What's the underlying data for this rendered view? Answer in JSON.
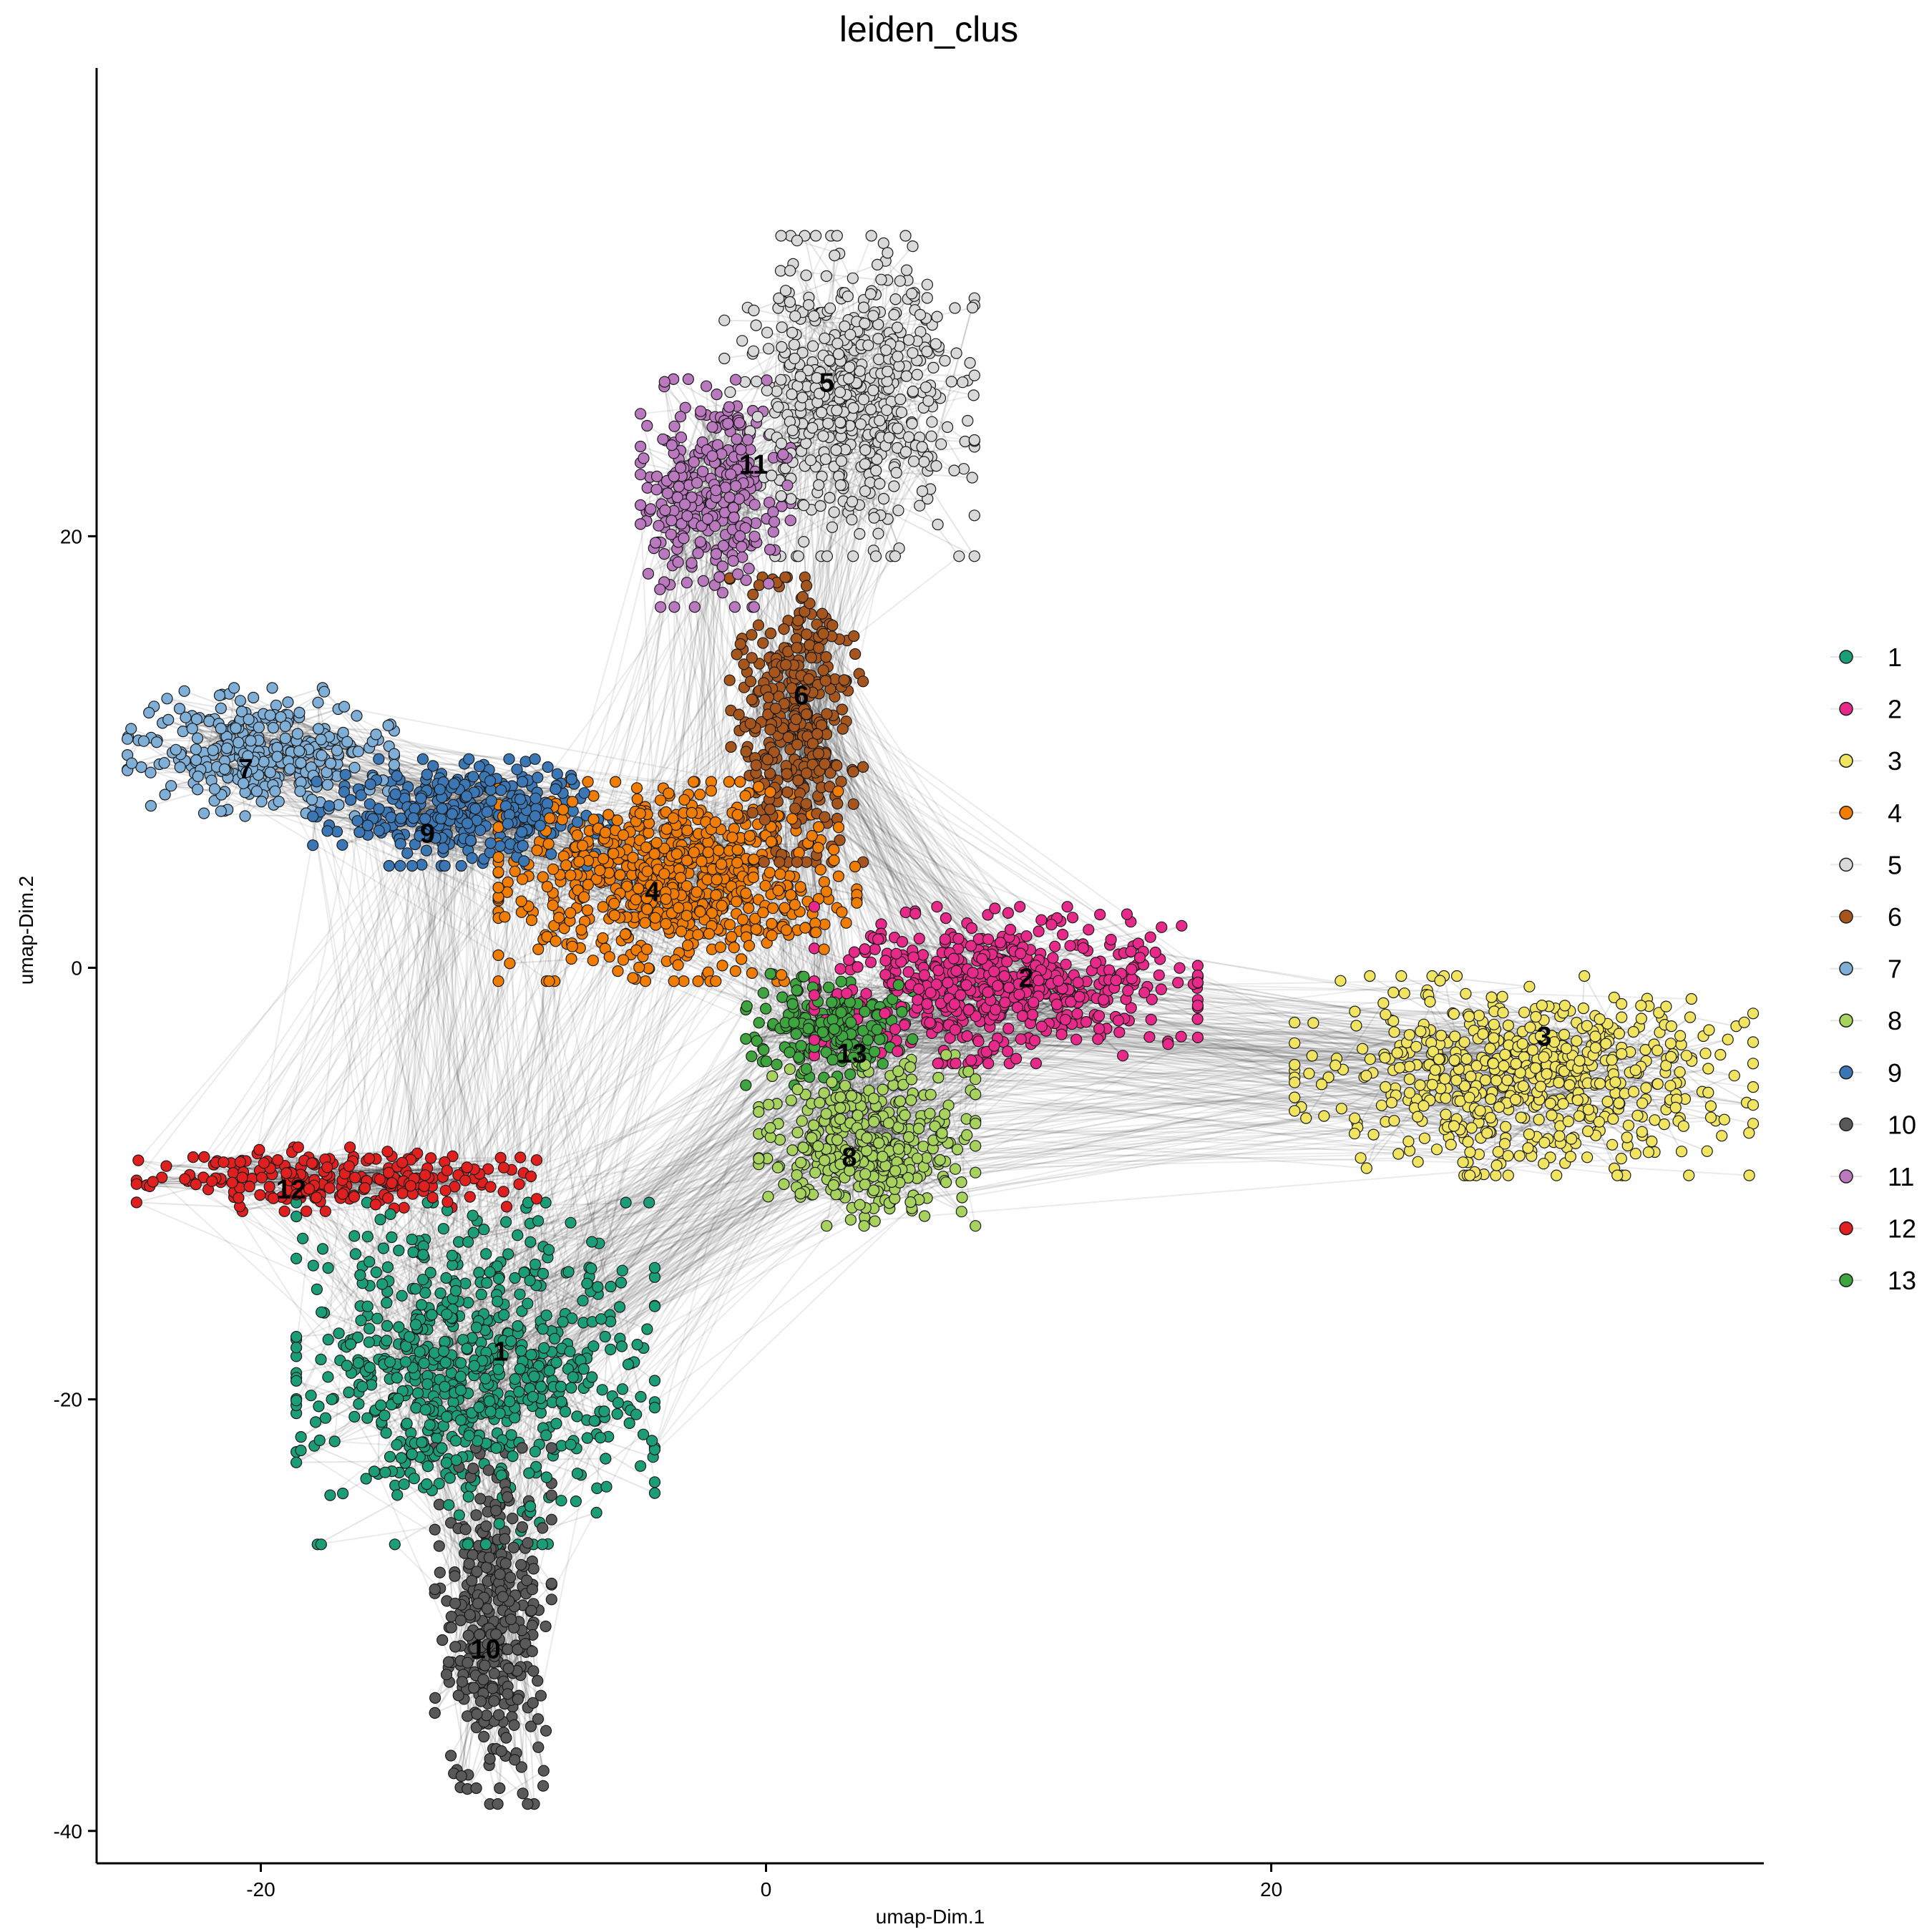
{
  "chart_data": {
    "type": "scatter",
    "title": "leiden_clus",
    "xlabel": "umap-Dim.1",
    "ylabel": "umap-Dim.2",
    "xlim": [
      -26.5,
      39.5
    ],
    "ylim": [
      -41.5,
      41.7
    ],
    "xticks": [
      -20,
      0,
      20
    ],
    "yticks": [
      -40,
      -20,
      0,
      20
    ],
    "legend_position": "right",
    "network_edges": true,
    "series": [
      {
        "name": "1",
        "color": "#1B9E77",
        "center": [
          -11.5,
          -18.8
        ],
        "spread": [
          4.3,
          4.8
        ],
        "count": 700,
        "label_at": [
          -10.5,
          -18.2
        ]
      },
      {
        "name": "2",
        "color": "#E7298A",
        "center": [
          9.5,
          -0.8
        ],
        "spread": [
          4.6,
          2.2
        ],
        "count": 560,
        "label_at": [
          10.3,
          -0.9
        ]
      },
      {
        "name": "3",
        "color": "#F0E461",
        "center": [
          30.0,
          -5.0
        ],
        "spread": [
          5.5,
          2.8
        ],
        "count": 600,
        "label_at": [
          30.8,
          -3.6
        ]
      },
      {
        "name": "4",
        "color": "#F07C00",
        "center": [
          -3.5,
          4.0
        ],
        "spread": [
          4.3,
          2.8
        ],
        "count": 700,
        "label_at": [
          -4.5,
          3.1
        ]
      },
      {
        "name": "5",
        "color": "#D9D9D9",
        "center": [
          3.3,
          26.5
        ],
        "spread": [
          3.0,
          4.5
        ],
        "count": 520,
        "label_at": [
          2.4,
          26.7
        ]
      },
      {
        "name": "6",
        "color": "#A6561C",
        "center": [
          1.2,
          11.5
        ],
        "spread": [
          1.6,
          4.0
        ],
        "count": 360,
        "label_at": [
          1.4,
          12.2
        ]
      },
      {
        "name": "7",
        "color": "#7FAFD6",
        "center": [
          -20.0,
          10.0
        ],
        "spread": [
          3.2,
          1.8
        ],
        "count": 320,
        "label_at": [
          -20.6,
          8.8
        ]
      },
      {
        "name": "8",
        "color": "#A8D25E",
        "center": [
          4.0,
          -8.0
        ],
        "spread": [
          2.6,
          2.4
        ],
        "count": 360,
        "label_at": [
          3.3,
          -9.2
        ]
      },
      {
        "name": "9",
        "color": "#3A77B4",
        "center": [
          -12.0,
          7.2
        ],
        "spread": [
          3.6,
          1.5
        ],
        "count": 330,
        "label_at": [
          -13.4,
          5.8
        ]
      },
      {
        "name": "10",
        "color": "#595959",
        "center": [
          -10.8,
          -30.5
        ],
        "spread": [
          1.4,
          5.0
        ],
        "count": 330,
        "label_at": [
          -11.1,
          -32.0
        ]
      },
      {
        "name": "11",
        "color": "#BA79BE",
        "center": [
          -2.0,
          22.0
        ],
        "spread": [
          1.8,
          3.2
        ],
        "count": 300,
        "label_at": [
          -0.5,
          22.9
        ]
      },
      {
        "name": "12",
        "color": "#E01F1F",
        "center": [
          -17.0,
          -9.8
        ],
        "spread": [
          4.8,
          0.9
        ],
        "count": 230,
        "label_at": [
          -18.8,
          -10.7
        ]
      },
      {
        "name": "13",
        "color": "#3EA43E",
        "center": [
          2.5,
          -2.8
        ],
        "spread": [
          2.0,
          1.6
        ],
        "count": 200,
        "label_at": [
          3.4,
          -4.4
        ]
      }
    ]
  }
}
